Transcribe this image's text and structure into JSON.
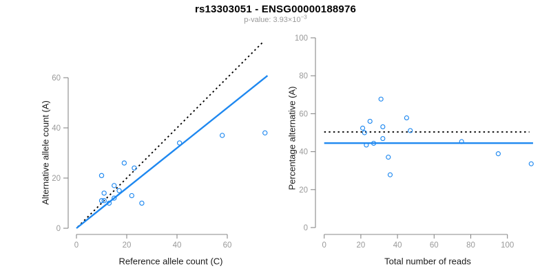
{
  "header": {
    "title": "rs13303051 - ENSG00000188976",
    "subtitle_prefix": "p-value: 3.93×10",
    "subtitle_exponent": "−3"
  },
  "colors": {
    "accent_blue": "#1e88f0",
    "dotted_line": "#000000",
    "axis_line": "#888888",
    "tick_label": "#999999",
    "axis_title": "#1a1a1a",
    "subtitle_text": "#999999"
  },
  "chart_data": [
    {
      "type": "scatter",
      "panel": "left",
      "xlabel": "Reference allele count (C)",
      "ylabel": "Alternative allele count (A)",
      "xlim": [
        0,
        76
      ],
      "ylim": [
        0,
        76
      ],
      "xticks": [
        0,
        20,
        40,
        60
      ],
      "yticks": [
        0,
        20,
        40,
        60
      ],
      "grid": false,
      "legend": null,
      "points": [
        [
          10,
          21
        ],
        [
          11,
          14
        ],
        [
          10,
          11
        ],
        [
          11,
          11
        ],
        [
          13,
          10
        ],
        [
          15,
          12
        ],
        [
          15,
          17
        ],
        [
          17,
          15
        ],
        [
          19,
          26
        ],
        [
          23,
          24
        ],
        [
          22,
          13
        ],
        [
          26,
          10
        ],
        [
          41,
          34
        ],
        [
          58,
          37
        ],
        [
          75,
          38
        ]
      ],
      "lines": [
        {
          "name": "identity-line",
          "style": "dotted",
          "color": "#000000",
          "from": [
            0.5,
            0.5
          ],
          "to": [
            74.5,
            74.5
          ]
        },
        {
          "name": "fit-line",
          "style": "solid",
          "color": "#1e88f0",
          "from": [
            0,
            0
          ],
          "to": [
            76,
            60.8
          ]
        }
      ]
    },
    {
      "type": "scatter",
      "panel": "right",
      "xlabel": "Total number of reads",
      "ylabel": "Percentage alternative (A)",
      "xlim": [
        0,
        115
      ],
      "ylim": [
        0,
        100
      ],
      "xticks": [
        0,
        20,
        40,
        60,
        80,
        100
      ],
      "yticks": [
        0,
        20,
        40,
        60,
        80,
        100
      ],
      "grid": false,
      "legend": null,
      "points": [
        [
          31,
          67.7
        ],
        [
          25,
          56
        ],
        [
          21,
          52.4
        ],
        [
          22,
          50
        ],
        [
          23,
          43.5
        ],
        [
          27,
          44.4
        ],
        [
          32,
          53.1
        ],
        [
          32,
          46.9
        ],
        [
          45,
          57.8
        ],
        [
          47,
          51.1
        ],
        [
          35,
          37.1
        ],
        [
          36,
          27.8
        ],
        [
          75,
          45.3
        ],
        [
          95,
          38.9
        ],
        [
          113,
          33.6
        ]
      ],
      "lines": [
        {
          "name": "expected-50pct-line",
          "style": "dotted",
          "color": "#000000",
          "from": [
            0,
            50.4
          ],
          "to": [
            112,
            50.4
          ]
        },
        {
          "name": "mean-pct-line",
          "style": "solid",
          "color": "#1e88f0",
          "from": [
            0,
            44.5
          ],
          "to": [
            114,
            44.5
          ]
        }
      ]
    }
  ]
}
